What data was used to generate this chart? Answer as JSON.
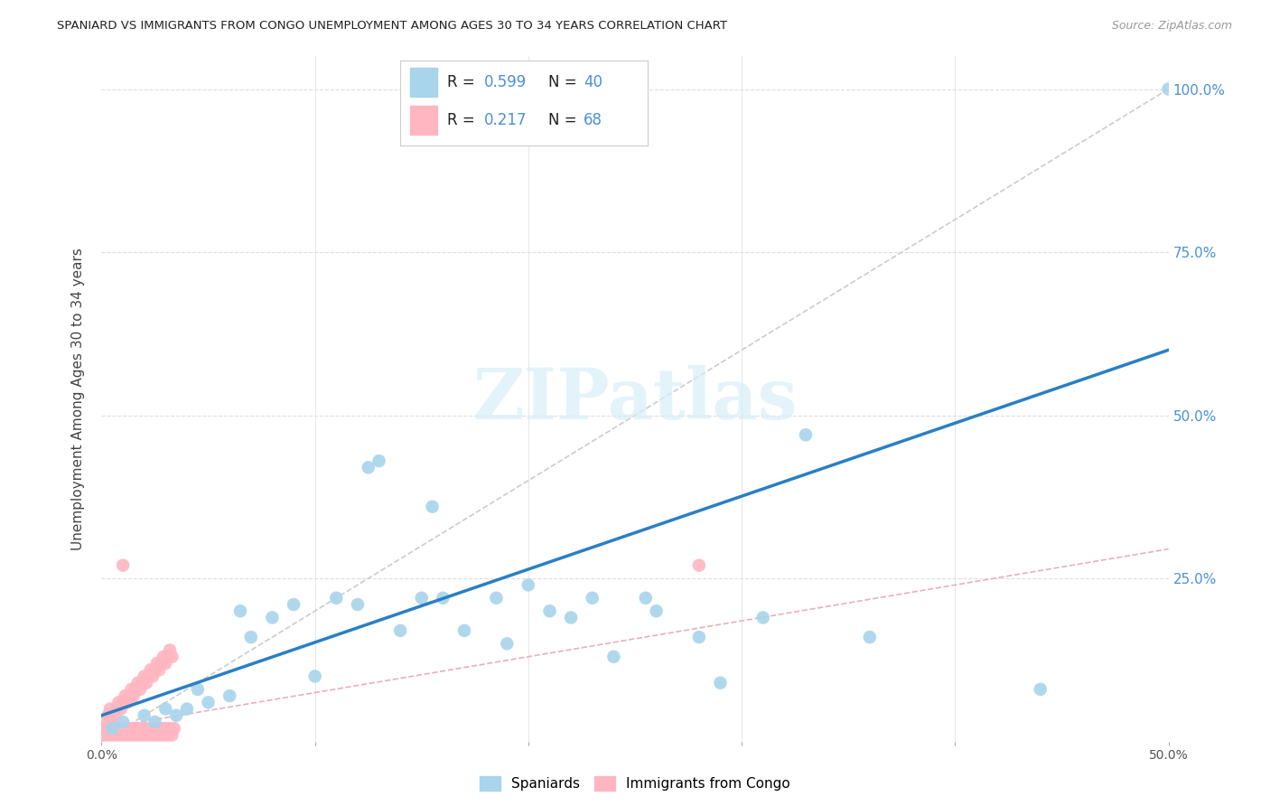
{
  "title": "SPANIARD VS IMMIGRANTS FROM CONGO UNEMPLOYMENT AMONG AGES 30 TO 34 YEARS CORRELATION CHART",
  "source": "Source: ZipAtlas.com",
  "ylabel": "Unemployment Among Ages 30 to 34 years",
  "xlim": [
    0,
    0.5
  ],
  "ylim": [
    0,
    1.05
  ],
  "xticks": [
    0.0,
    0.1,
    0.2,
    0.3,
    0.4,
    0.5
  ],
  "xticklabels": [
    "0.0%",
    "",
    "",
    "",
    "",
    "50.0%"
  ],
  "yticks_right": [
    0.25,
    0.5,
    0.75,
    1.0
  ],
  "yticklabels_right": [
    "25.0%",
    "50.0%",
    "75.0%",
    "100.0%"
  ],
  "legend_blue_r": "0.599",
  "legend_blue_n": "40",
  "legend_pink_r": "0.217",
  "legend_pink_n": "68",
  "legend_label_blue": "Spaniards",
  "legend_label_pink": "Immigrants from Congo",
  "blue_scatter_color": "#a8d4ec",
  "pink_scatter_color": "#ffb6c1",
  "blue_line_color": "#2a7fc4",
  "ref_line_color": "#cccccc",
  "pink_line_color": "#e8b0bc",
  "watermark_text": "ZIPatlas",
  "watermark_color": "#d8eef8",
  "grid_color": "#dddddd",
  "title_color": "#222222",
  "source_color": "#999999",
  "tick_label_color": "#4a90d9",
  "blue_x": [
    0.005,
    0.01,
    0.02,
    0.025,
    0.03,
    0.035,
    0.04,
    0.045,
    0.05,
    0.06,
    0.065,
    0.07,
    0.08,
    0.09,
    0.1,
    0.11,
    0.12,
    0.125,
    0.13,
    0.14,
    0.15,
    0.155,
    0.16,
    0.17,
    0.185,
    0.19,
    0.2,
    0.21,
    0.22,
    0.23,
    0.24,
    0.255,
    0.26,
    0.28,
    0.29,
    0.31,
    0.33,
    0.36,
    0.44,
    0.5
  ],
  "blue_y": [
    0.02,
    0.03,
    0.04,
    0.03,
    0.05,
    0.04,
    0.05,
    0.08,
    0.06,
    0.07,
    0.2,
    0.16,
    0.19,
    0.21,
    0.1,
    0.22,
    0.21,
    0.42,
    0.43,
    0.17,
    0.22,
    0.36,
    0.22,
    0.17,
    0.22,
    0.15,
    0.24,
    0.2,
    0.19,
    0.22,
    0.13,
    0.22,
    0.2,
    0.16,
    0.09,
    0.19,
    0.47,
    0.16,
    0.08,
    1.0
  ],
  "pink_x": [
    0.001,
    0.002,
    0.002,
    0.003,
    0.003,
    0.004,
    0.004,
    0.005,
    0.005,
    0.006,
    0.006,
    0.007,
    0.007,
    0.008,
    0.008,
    0.009,
    0.009,
    0.01,
    0.01,
    0.011,
    0.011,
    0.012,
    0.012,
    0.013,
    0.013,
    0.014,
    0.014,
    0.015,
    0.015,
    0.016,
    0.016,
    0.017,
    0.017,
    0.018,
    0.018,
    0.019,
    0.019,
    0.02,
    0.02,
    0.021,
    0.021,
    0.022,
    0.022,
    0.023,
    0.023,
    0.024,
    0.024,
    0.025,
    0.025,
    0.026,
    0.026,
    0.027,
    0.027,
    0.028,
    0.028,
    0.029,
    0.029,
    0.03,
    0.03,
    0.031,
    0.031,
    0.032,
    0.032,
    0.033,
    0.033,
    0.034,
    0.01,
    0.28
  ],
  "pink_y": [
    0.01,
    0.02,
    0.03,
    0.01,
    0.04,
    0.02,
    0.05,
    0.01,
    0.03,
    0.02,
    0.04,
    0.01,
    0.05,
    0.02,
    0.06,
    0.01,
    0.05,
    0.02,
    0.06,
    0.01,
    0.07,
    0.02,
    0.06,
    0.01,
    0.07,
    0.02,
    0.08,
    0.01,
    0.07,
    0.02,
    0.08,
    0.01,
    0.09,
    0.02,
    0.08,
    0.01,
    0.09,
    0.02,
    0.1,
    0.01,
    0.09,
    0.02,
    0.1,
    0.01,
    0.11,
    0.02,
    0.1,
    0.01,
    0.11,
    0.02,
    0.12,
    0.01,
    0.11,
    0.02,
    0.12,
    0.01,
    0.13,
    0.02,
    0.12,
    0.01,
    0.13,
    0.02,
    0.14,
    0.01,
    0.13,
    0.02,
    0.27,
    0.27
  ]
}
